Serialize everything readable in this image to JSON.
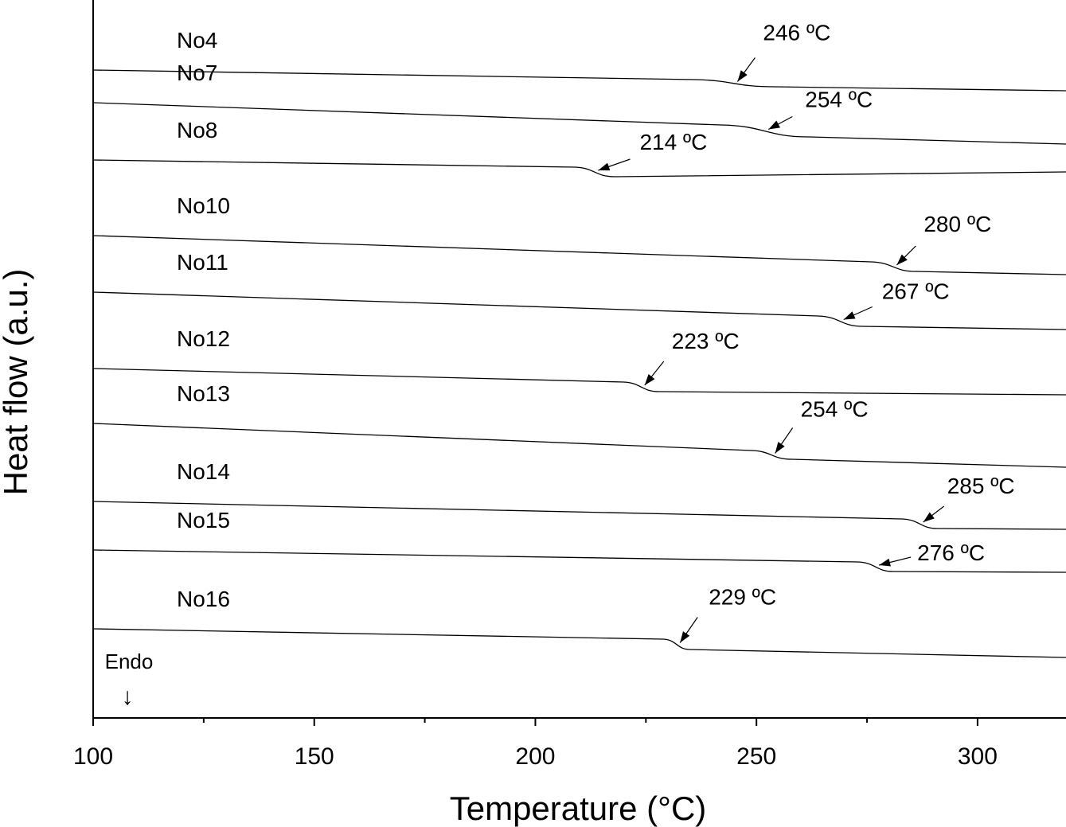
{
  "chart_data": {
    "type": "line",
    "xlabel": "Temperature (°C)",
    "ylabel": "Heat flow (a.u.)",
    "xlim": [
      100,
      320
    ],
    "x_ticks": [
      100,
      150,
      200,
      250,
      300
    ],
    "y_ticks": "none",
    "grid": false,
    "legend": "none; sample names printed inline above each curve",
    "endo_marker": {
      "text": "Endo",
      "arrow": "↓"
    },
    "series": [
      {
        "name": "No4",
        "transition_c": 246,
        "annotation": "246 ºC",
        "baseline": [
          [
            100,
            88
          ],
          [
            236,
            100
          ],
          [
            254,
            109
          ],
          [
            320,
            114
          ]
        ]
      },
      {
        "name": "No7",
        "transition_c": 254,
        "annotation": "254 ºC",
        "baseline": [
          [
            100,
            129
          ],
          [
            242,
            157
          ],
          [
            262,
            172
          ],
          [
            320,
            181
          ]
        ]
      },
      {
        "name": "No8",
        "transition_c": 214,
        "annotation": "214 ºC",
        "baseline": [
          [
            100,
            201
          ],
          [
            209,
            210
          ],
          [
            218,
            222
          ],
          [
            320,
            216
          ]
        ]
      },
      {
        "name": "No10",
        "transition_c": 280,
        "annotation": "280 ºC",
        "baseline": [
          [
            100,
            296
          ],
          [
            276,
            329
          ],
          [
            286,
            341
          ],
          [
            320,
            345
          ]
        ]
      },
      {
        "name": "No11",
        "transition_c": 267,
        "annotation": "267 ºC",
        "baseline": [
          [
            100,
            367
          ],
          [
            264,
            397
          ],
          [
            274,
            410
          ],
          [
            320,
            414
          ]
        ]
      },
      {
        "name": "No12",
        "transition_c": 223,
        "annotation": "223 ºC",
        "baseline": [
          [
            100,
            463
          ],
          [
            220,
            480
          ],
          [
            228,
            492
          ],
          [
            320,
            496
          ]
        ]
      },
      {
        "name": "No13",
        "transition_c": 254,
        "annotation": "254 ºC",
        "baseline": [
          [
            100,
            532
          ],
          [
            249,
            566
          ],
          [
            258,
            577
          ],
          [
            320,
            587
          ]
        ]
      },
      {
        "name": "No14",
        "transition_c": 285,
        "annotation": "285 ºC",
        "baseline": [
          [
            100,
            630
          ],
          [
            283,
            652
          ],
          [
            291,
            664
          ],
          [
            320,
            665
          ]
        ]
      },
      {
        "name": "No15",
        "transition_c": 276,
        "annotation": "276 ºC",
        "baseline": [
          [
            100,
            691
          ],
          [
            273,
            706
          ],
          [
            281,
            718
          ],
          [
            320,
            719
          ]
        ]
      },
      {
        "name": "No16",
        "transition_c": 229,
        "annotation": "229 ºC",
        "baseline": [
          [
            100,
            790
          ],
          [
            229,
            803
          ],
          [
            235,
            816
          ],
          [
            320,
            826
          ]
        ]
      }
    ]
  }
}
